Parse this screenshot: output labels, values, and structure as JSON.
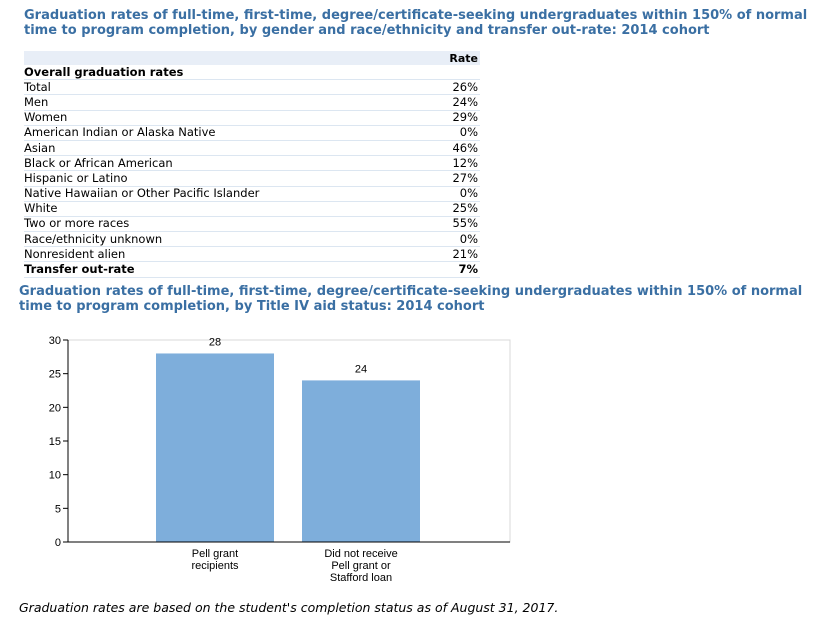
{
  "table_title": "Graduation rates of full-time, first-time, degree/certificate-seeking undergraduates within 150% of normal time to program completion, by gender and race/ethnicity and transfer out-rate: 2014 cohort",
  "table": {
    "header_rate": "Rate",
    "rows": [
      {
        "label": "Overall graduation rates",
        "value": "",
        "bold": true
      },
      {
        "label": "Total",
        "value": "26%"
      },
      {
        "label": "Men",
        "value": "24%"
      },
      {
        "label": "Women",
        "value": "29%"
      },
      {
        "label": "American Indian or Alaska Native",
        "value": "0%"
      },
      {
        "label": "Asian",
        "value": "46%"
      },
      {
        "label": "Black or African American",
        "value": "12%"
      },
      {
        "label": "Hispanic or Latino",
        "value": "27%"
      },
      {
        "label": "Native Hawaiian or Other Pacific Islander",
        "value": "0%"
      },
      {
        "label": "White",
        "value": "25%"
      },
      {
        "label": "Two or more races",
        "value": "55%"
      },
      {
        "label": "Race/ethnicity unknown",
        "value": "0%"
      },
      {
        "label": "Nonresident alien",
        "value": "21%"
      },
      {
        "label": "Transfer out-rate",
        "value": "7%",
        "bold": true
      }
    ]
  },
  "chart_title": "Graduation rates of full-time, first-time, degree/certificate-seeking undergraduates within 150% of normal time to program completion, by Title IV aid status: 2014 cohort",
  "chart_data": {
    "type": "bar",
    "categories": [
      [
        "Pell grant",
        "recipients"
      ],
      [
        "Did not receive",
        "Pell grant or",
        "Stafford loan"
      ]
    ],
    "values": [
      28,
      24
    ],
    "ylim": [
      0,
      30
    ],
    "yticks": [
      0,
      5,
      10,
      15,
      20,
      25,
      30
    ],
    "bar_color": "#7eaedb",
    "grid": false
  },
  "footnote": "Graduation rates are based on the student's completion status as of August 31, 2017."
}
